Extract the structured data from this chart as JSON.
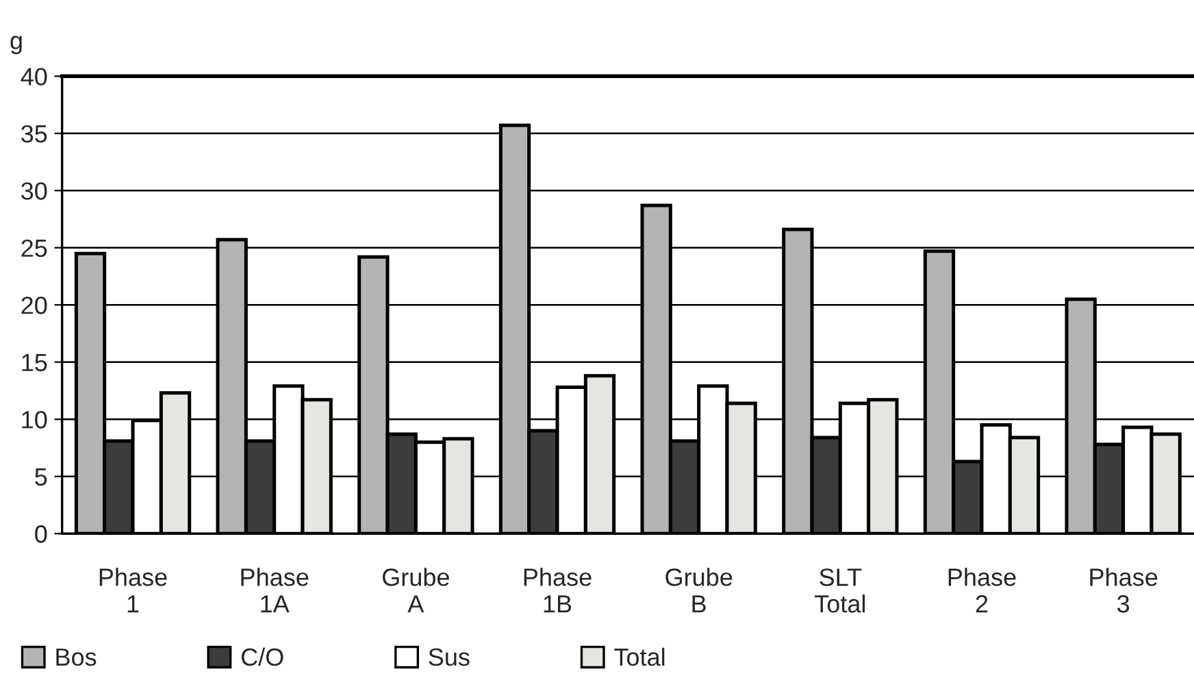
{
  "chart_data": {
    "type": "bar",
    "ylabel": "g",
    "categories": [
      "Phase\n1",
      "Phase\n1A",
      "Grube\nA",
      "Phase\n1B",
      "Grube\nB",
      "SLT\nTotal",
      "Phase\n2",
      "Phase\n3"
    ],
    "series": [
      {
        "name": "Bos",
        "color": "#b4b4b4",
        "values": [
          24.5,
          25.7,
          24.2,
          35.7,
          28.7,
          26.6,
          24.7,
          20.5
        ]
      },
      {
        "name": "C/O",
        "color": "#3c3c3c",
        "values": [
          8.1,
          8.1,
          8.7,
          9.0,
          8.1,
          8.4,
          6.3,
          7.8
        ]
      },
      {
        "name": "Sus",
        "color": "#ffffff",
        "values": [
          9.9,
          12.9,
          8.0,
          12.8,
          12.9,
          11.4,
          9.5,
          9.3
        ]
      },
      {
        "name": "Total",
        "color": "#e4e6e2",
        "values": [
          12.3,
          11.7,
          8.3,
          13.8,
          11.4,
          11.7,
          8.4,
          8.7
        ]
      }
    ],
    "ylim": [
      0,
      40
    ],
    "yticks": [
      0,
      5,
      10,
      15,
      20,
      25,
      30,
      35,
      40
    ],
    "grid": "y",
    "legend": "bottom left"
  }
}
